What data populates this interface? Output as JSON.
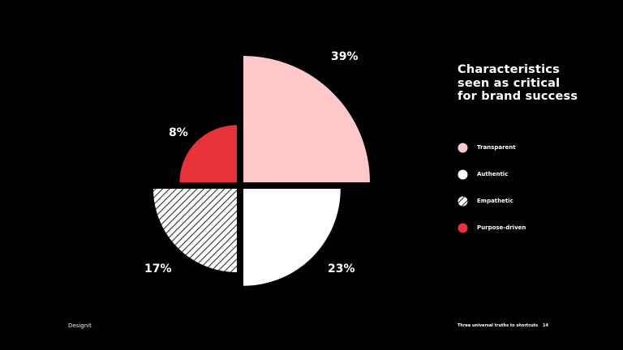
{
  "chart_data": {
    "type": "pie",
    "title": "Characteristics seen as critical for brand success",
    "categories": [
      "Transparent",
      "Authentic",
      "Empathetic",
      "Purpose-driven"
    ],
    "values": [
      39,
      23,
      17,
      8
    ],
    "value_labels": [
      "39%",
      "23%",
      "17%",
      "8%"
    ],
    "colors": [
      "#FFC8CA",
      "#FFFFFF",
      "#D9D9D9",
      "#E8323A"
    ],
    "patterns": [
      "solid",
      "solid",
      "hatched",
      "solid"
    ],
    "legend_position": "right"
  },
  "footer": {
    "brand": "Designit",
    "caption": "Three universal truths to shortcuts",
    "page": "14"
  }
}
